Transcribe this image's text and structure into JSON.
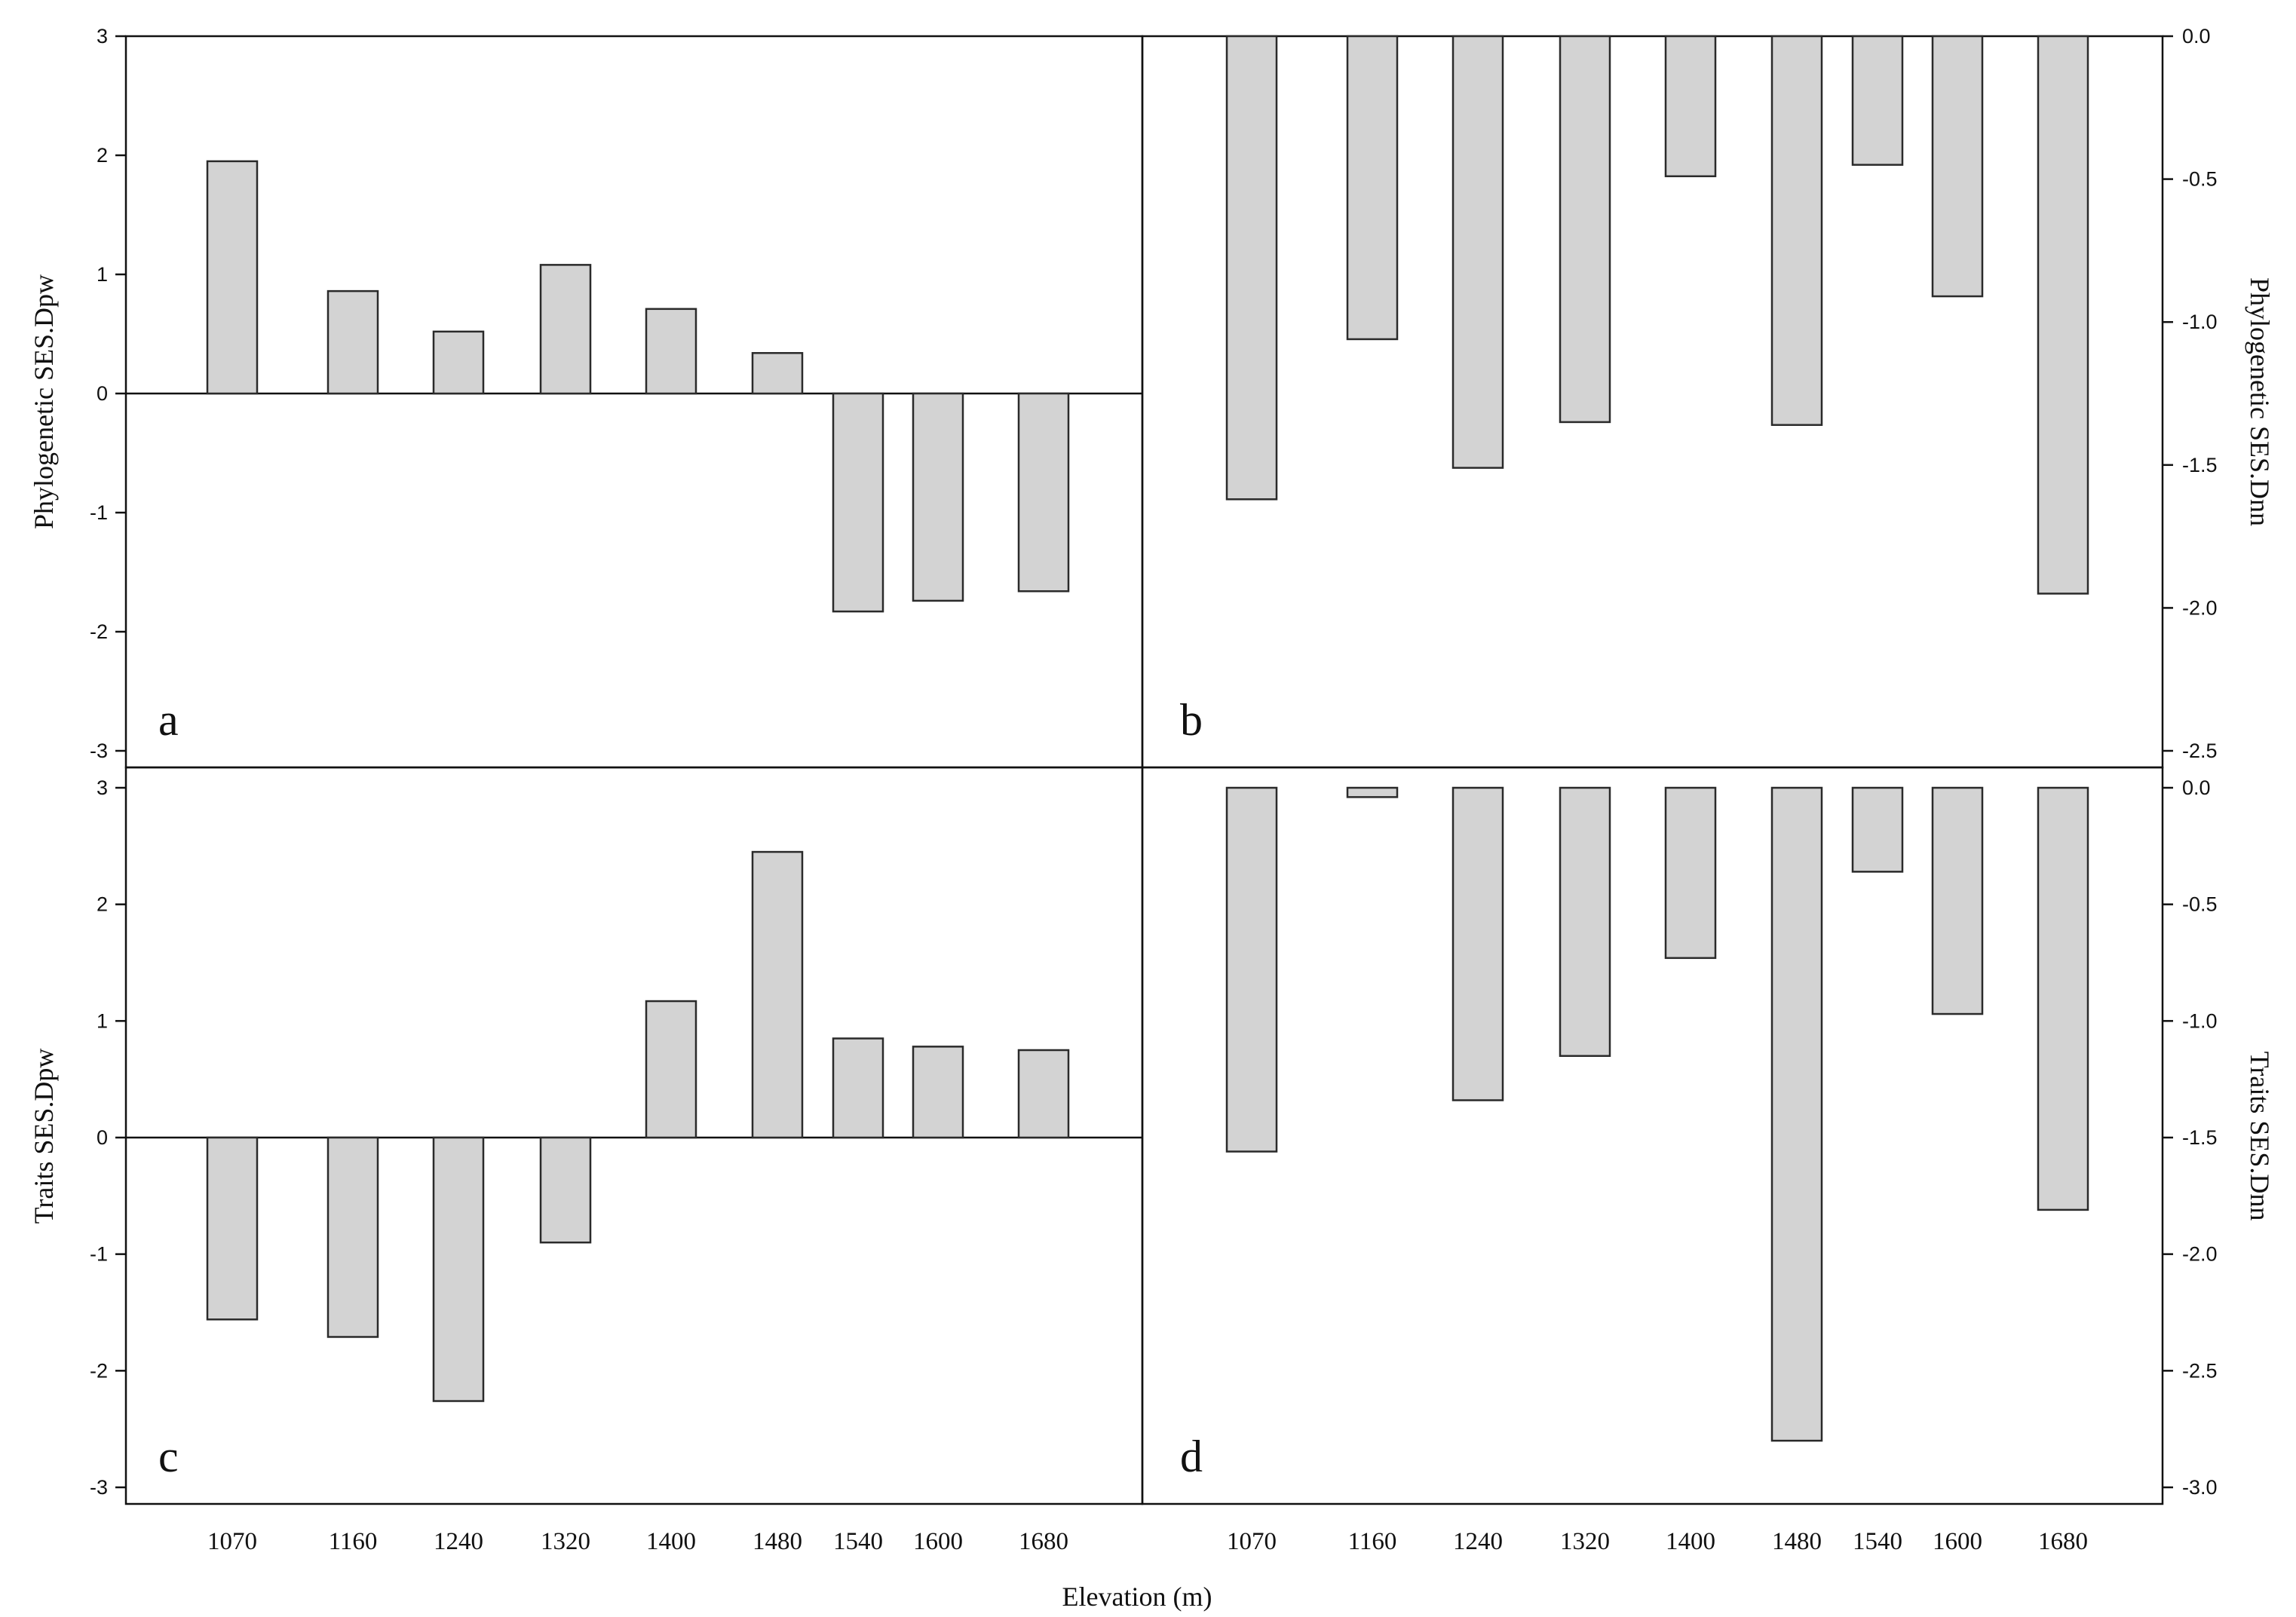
{
  "figure": {
    "xlabel": "Elevation (m)"
  },
  "chart_data": [
    {
      "panel": "a",
      "type": "bar",
      "ylabel": "Phylogenetic SES.Dpw",
      "y_axis_side": "left",
      "ylim": [
        -3,
        3
      ],
      "yticks": [
        "3",
        "2",
        "1",
        "0",
        "-1",
        "-2",
        "-3"
      ],
      "categories": [
        "1070",
        "1160",
        "1240",
        "1320",
        "1400",
        "1480",
        "1540",
        "1600",
        "1680"
      ],
      "values": [
        1.95,
        0.86,
        0.52,
        1.08,
        0.71,
        0.34,
        -1.83,
        -1.74,
        -1.66
      ]
    },
    {
      "panel": "b",
      "type": "bar",
      "ylabel": "Phylogenetic SES.Dnn",
      "y_axis_side": "right",
      "ylim": [
        -2.5,
        0
      ],
      "yticks": [
        "0.0",
        "-0.5",
        "-1.0",
        "-1.5",
        "-2.0",
        "-2.5"
      ],
      "categories": [
        "1070",
        "1160",
        "1240",
        "1320",
        "1400",
        "1480",
        "1540",
        "1600",
        "1680"
      ],
      "values": [
        -1.62,
        -1.06,
        -1.51,
        -1.35,
        -0.49,
        -1.36,
        -0.45,
        -0.91,
        -1.95
      ]
    },
    {
      "panel": "c",
      "type": "bar",
      "ylabel": "Traits SES.Dpw",
      "y_axis_side": "left",
      "ylim": [
        -3,
        3
      ],
      "yticks": [
        "3",
        "2",
        "1",
        "0",
        "-1",
        "-2",
        "-3"
      ],
      "categories": [
        "1070",
        "1160",
        "1240",
        "1320",
        "1400",
        "1480",
        "1540",
        "1600",
        "1680"
      ],
      "values": [
        -1.56,
        -1.71,
        -2.26,
        -0.9,
        1.17,
        2.45,
        0.85,
        0.78,
        0.75
      ]
    },
    {
      "panel": "d",
      "type": "bar",
      "ylabel": "Traits SES.Dnn",
      "y_axis_side": "right",
      "ylim": [
        -3,
        0
      ],
      "yticks": [
        "0.0",
        "-0.5",
        "-1.0",
        "-1.5",
        "-2.0",
        "-2.5",
        "-3.0"
      ],
      "categories": [
        "1070",
        "1160",
        "1240",
        "1320",
        "1400",
        "1480",
        "1540",
        "1600",
        "1680"
      ],
      "values": [
        -1.56,
        -0.04,
        -1.34,
        -1.15,
        -0.73,
        -2.8,
        -0.36,
        -0.97,
        -1.81
      ]
    }
  ]
}
